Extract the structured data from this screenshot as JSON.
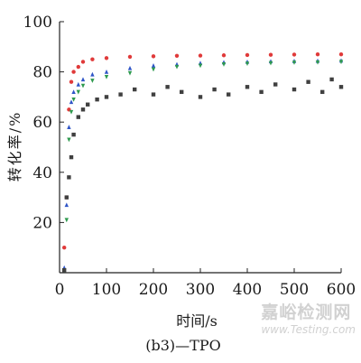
{
  "chart_data": {
    "type": "scatter",
    "xlabel": "时间/s",
    "ylabel": "转化率/%",
    "caption": "(b3)—TPO",
    "xlim": [
      0,
      600
    ],
    "ylim": [
      0,
      100
    ],
    "xticks": [
      0,
      100,
      200,
      300,
      400,
      500,
      600
    ],
    "yticks": [
      20,
      40,
      60,
      80,
      100
    ],
    "grid": false,
    "legend": "none",
    "series": [
      {
        "color": "#e03a3a",
        "marker": "circle",
        "x": [
          10,
          15,
          20,
          25,
          30,
          40,
          50,
          70,
          100,
          150,
          200,
          250,
          300,
          350,
          400,
          450,
          500,
          550,
          600
        ],
        "y": [
          10,
          30,
          65,
          76,
          80,
          82,
          84,
          85,
          85.5,
          86,
          86.2,
          86.4,
          86.5,
          86.6,
          86.7,
          86.8,
          86.9,
          87,
          87
        ]
      },
      {
        "color": "#2f55c7",
        "marker": "triangle-up",
        "x": [
          10,
          15,
          20,
          25,
          30,
          40,
          50,
          70,
          100,
          150,
          200,
          250,
          300,
          350,
          400,
          450,
          500,
          550,
          600
        ],
        "y": [
          2,
          27,
          58,
          68,
          72,
          75,
          77,
          79,
          80,
          81.5,
          82.5,
          83,
          83.5,
          83.8,
          84,
          84.2,
          84.3,
          84.4,
          84.5
        ]
      },
      {
        "color": "#2e9a4e",
        "marker": "triangle-down",
        "x": [
          10,
          15,
          20,
          25,
          30,
          40,
          50,
          70,
          100,
          150,
          200,
          250,
          300,
          350,
          400,
          450,
          500,
          550,
          600
        ],
        "y": [
          1,
          21,
          53,
          64,
          69,
          72,
          74.5,
          76.5,
          78,
          79.5,
          81,
          82,
          82.5,
          83,
          83.3,
          83.5,
          83.7,
          83.8,
          84
        ]
      },
      {
        "color": "#404040",
        "marker": "square",
        "x": [
          10,
          15,
          20,
          25,
          30,
          40,
          50,
          60,
          80,
          100,
          130,
          160,
          200,
          230,
          260,
          300,
          330,
          360,
          400,
          430,
          460,
          500,
          530,
          560,
          580,
          600
        ],
        "y": [
          1,
          30,
          38,
          46,
          55,
          62,
          65,
          67,
          69,
          70,
          71,
          73,
          71,
          74,
          72,
          70,
          73,
          71,
          74,
          72,
          75,
          73,
          76,
          72,
          77,
          74
        ]
      }
    ]
  },
  "watermark": {
    "main": "嘉峪检测网",
    "sub": "www.Testing.com"
  }
}
